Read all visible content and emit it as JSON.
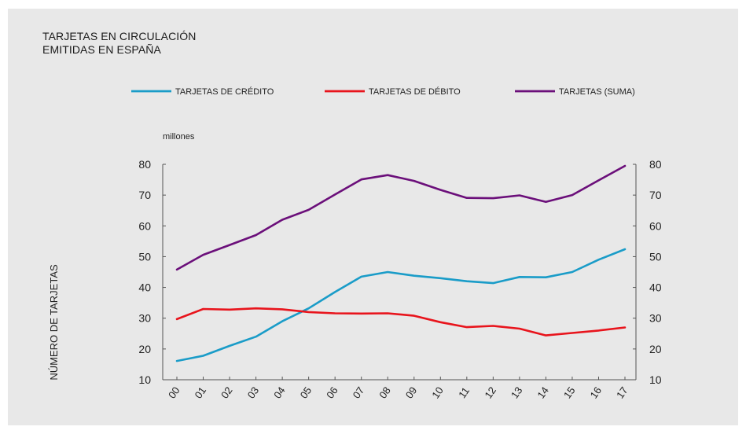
{
  "title_lines": [
    "TARJETAS EN CIRCULACIÓN",
    "EMITIDAS EN ESPAÑA"
  ],
  "chart_data": {
    "type": "line",
    "unit_label": "millones",
    "ylabel": "NÚMERO DE TARJETAS",
    "ylim": [
      10,
      80
    ],
    "yticks": [
      10,
      20,
      30,
      40,
      50,
      60,
      70,
      80
    ],
    "y_axes": "left-and-right",
    "grid": false,
    "legend_position": "top",
    "categories": [
      "00",
      "01",
      "02",
      "03",
      "04",
      "05",
      "06",
      "07",
      "08",
      "09",
      "10",
      "11",
      "12",
      "13",
      "14",
      "15",
      "16",
      "17"
    ],
    "series": [
      {
        "name": "TARJETAS DE CRÉDITO",
        "color": "#1a9cc8",
        "values": [
          16.1,
          17.8,
          21.0,
          24.0,
          29.0,
          33.2,
          38.5,
          43.5,
          45.0,
          43.8,
          43.0,
          42.0,
          41.4,
          43.4,
          43.3,
          45.0,
          49.0,
          52.4
        ]
      },
      {
        "name": "TARJETAS DE DÉBITO",
        "color": "#e8141c",
        "values": [
          29.7,
          33.0,
          32.8,
          33.2,
          32.9,
          32.0,
          31.6,
          31.5,
          31.6,
          30.8,
          28.7,
          27.1,
          27.5,
          26.6,
          24.4,
          25.2,
          26.0,
          27.0
        ]
      },
      {
        "name": "TARJETAS (SUMA)",
        "color": "#6b0f7a",
        "values": [
          45.8,
          50.6,
          53.8,
          57.0,
          62.0,
          65.2,
          70.2,
          75.1,
          76.5,
          74.6,
          71.7,
          69.1,
          69.0,
          69.9,
          67.8,
          70.0,
          74.8,
          79.5
        ]
      }
    ]
  }
}
